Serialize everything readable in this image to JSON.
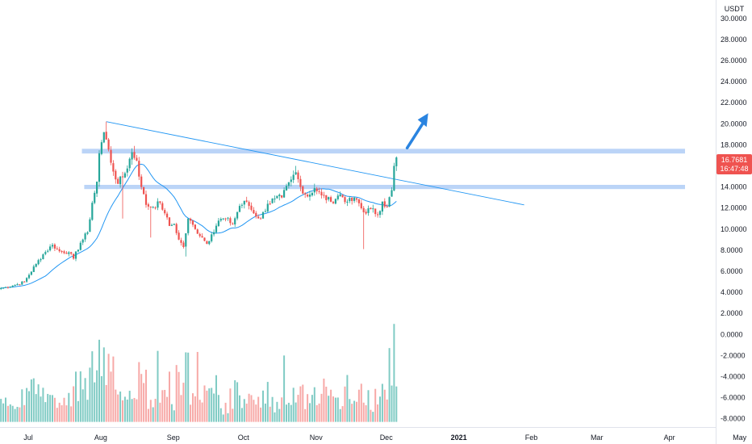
{
  "chart_data": {
    "type": "candlestick",
    "quote_currency": "USDT",
    "price_axis": {
      "ticks": [
        30,
        28,
        26,
        24,
        22,
        20,
        18,
        16,
        14,
        12,
        10,
        8,
        6,
        4,
        2,
        0,
        -2,
        -4,
        -6,
        -8
      ],
      "tick_labels": [
        "30.0000",
        "28.0000",
        "26.0000",
        "24.0000",
        "22.0000",
        "20.0000",
        "18.0000",
        "16.0000",
        "14.0000",
        "12.0000",
        "10.0000",
        "8.0000",
        "6.0000",
        "4.0000",
        "2.0000",
        "0.0000",
        "-2.0000",
        "-4.0000",
        "-6.0000",
        "-8.0000"
      ],
      "range": [
        -9,
        31.3
      ]
    },
    "time_axis": {
      "labels": [
        "Jul",
        "Aug",
        "Sep",
        "Oct",
        "Nov",
        "Dec",
        "2021",
        "Feb",
        "Mar",
        "Apr",
        "May"
      ],
      "bold_label": "2021",
      "x_at_label": [
        0,
        31,
        62,
        92,
        123,
        153,
        184,
        215,
        243,
        274,
        304
      ]
    },
    "price_badge": {
      "price": "16.7681",
      "countdown": "16:47:48",
      "color": "#ef5350"
    },
    "colors": {
      "up": "#26a69a",
      "down": "#ef5350",
      "ma": "#2196f3",
      "zone": "#bbd4f7",
      "volume_up": "#80cbc4",
      "volume_down": "#f7a9a7"
    },
    "grid": false,
    "anchors": [
      {
        "x": 0,
        "p": 4.4
      },
      {
        "x": 6,
        "p": 4.7
      },
      {
        "x": 10,
        "p": 5.0
      },
      {
        "x": 15,
        "p": 6.7
      },
      {
        "x": 18,
        "p": 7.6
      },
      {
        "x": 22,
        "p": 8.5
      },
      {
        "x": 25,
        "p": 7.9
      },
      {
        "x": 29,
        "p": 7.8
      },
      {
        "x": 31,
        "p": 7.2
      },
      {
        "x": 34,
        "p": 8.7
      },
      {
        "x": 37,
        "p": 9.7
      },
      {
        "x": 39,
        "p": 12.5
      },
      {
        "x": 41,
        "p": 14.5
      },
      {
        "x": 42,
        "p": 17.2
      },
      {
        "x": 44,
        "p": 19.2
      },
      {
        "x": 45,
        "p": 18.5
      },
      {
        "x": 47,
        "p": 16.3
      },
      {
        "x": 50,
        "p": 14.3
      },
      {
        "x": 53,
        "p": 15.3
      },
      {
        "x": 56,
        "p": 17.3
      },
      {
        "x": 58,
        "p": 16.5
      },
      {
        "x": 60,
        "p": 14.0
      },
      {
        "x": 62,
        "p": 12.3
      },
      {
        "x": 65,
        "p": 12.1
      },
      {
        "x": 68,
        "p": 12.5
      },
      {
        "x": 70,
        "p": 11.5
      },
      {
        "x": 72,
        "p": 10.3
      },
      {
        "x": 74,
        "p": 10.5
      },
      {
        "x": 76,
        "p": 9.0
      },
      {
        "x": 78,
        "p": 8.3
      },
      {
        "x": 80,
        "p": 11.0
      },
      {
        "x": 83,
        "p": 10.0
      },
      {
        "x": 86,
        "p": 9.2
      },
      {
        "x": 88,
        "p": 8.6
      },
      {
        "x": 90,
        "p": 9.5
      },
      {
        "x": 93,
        "p": 10.8
      },
      {
        "x": 96,
        "p": 11.0
      },
      {
        "x": 99,
        "p": 10.5
      },
      {
        "x": 102,
        "p": 12.2
      },
      {
        "x": 105,
        "p": 12.6
      },
      {
        "x": 108,
        "p": 11.5
      },
      {
        "x": 111,
        "p": 11.0
      },
      {
        "x": 114,
        "p": 12.4
      },
      {
        "x": 117,
        "p": 12.9
      },
      {
        "x": 120,
        "p": 13.0
      },
      {
        "x": 124,
        "p": 14.7
      },
      {
        "x": 126,
        "p": 15.4
      },
      {
        "x": 128,
        "p": 14.0
      },
      {
        "x": 131,
        "p": 13.1
      },
      {
        "x": 134,
        "p": 13.9
      },
      {
        "x": 137,
        "p": 13.2
      },
      {
        "x": 141,
        "p": 12.6
      },
      {
        "x": 145,
        "p": 13.3
      },
      {
        "x": 148,
        "p": 12.6
      },
      {
        "x": 152,
        "p": 12.8
      },
      {
        "x": 155,
        "p": 11.6
      },
      {
        "x": 158,
        "p": 11.9
      },
      {
        "x": 161,
        "p": 11.4
      },
      {
        "x": 163,
        "p": 12.6
      },
      {
        "x": 165,
        "p": 12.1
      },
      {
        "x": 167,
        "p": 13.7
      },
      {
        "x": 168,
        "p": 16.0
      },
      {
        "x": 169,
        "p": 16.8
      }
    ],
    "extremes": [
      {
        "x": 45,
        "high": 20.2
      },
      {
        "x": 52,
        "low": 11.0
      },
      {
        "x": 57,
        "high": 17.9
      },
      {
        "x": 64,
        "low": 9.2
      },
      {
        "x": 79,
        "low": 7.4
      },
      {
        "x": 126,
        "high": 16.0
      },
      {
        "x": 155,
        "low": 8.1
      },
      {
        "x": 169,
        "high": 16.9
      }
    ],
    "lines": [
      {
        "name": "descending-trendline",
        "x1": 45,
        "p1": 20.2,
        "x2": 224,
        "p2": 12.3
      }
    ],
    "zones": [
      {
        "name": "resistance-zone",
        "center": 17.4,
        "thickness": 0.45,
        "x_start": 35
      },
      {
        "name": "support-zone",
        "center": 14.0,
        "thickness": 0.4,
        "x_start": 36
      }
    ],
    "annotations": [
      {
        "name": "breakout-arrow",
        "type": "arrow",
        "from_x": 174,
        "from_p": 17.7,
        "to_x": 183,
        "to_p": 21.0,
        "color": "#2a84e0"
      }
    ]
  }
}
